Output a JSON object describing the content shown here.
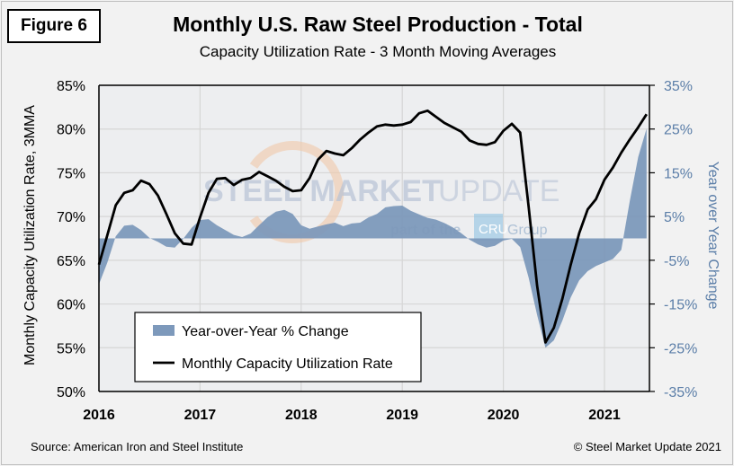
{
  "figure_label": "Figure 6",
  "source": "Source: American Iron and Steel Institute",
  "copyright": "© Steel Market Update 2021",
  "watermark": {
    "main_bold": "STEEL MARKET",
    "main_light": "UPDATE",
    "sub_pre": "part of the",
    "sub_badge": "CRU",
    "sub_post": "Group"
  },
  "colors": {
    "area": "#7d99bb",
    "line": "#000000",
    "right_axis": "#5b7ea8",
    "plot_bg": "#edeef0"
  },
  "chart_data": {
    "type": "line+area",
    "title": "Monthly U.S. Raw Steel Production - Total",
    "subtitle": "Capacity Utilization Rate - 3 Month Moving Averages",
    "ylabel": "Monthly Capacity Utilization Rate, 3MMA",
    "y2label": "Year over Year Change",
    "ylim": [
      50,
      85
    ],
    "y2lim": [
      -35,
      35
    ],
    "yticks": [
      "50%",
      "55%",
      "60%",
      "65%",
      "70%",
      "75%",
      "80%",
      "85%"
    ],
    "y2ticks": [
      "-35%",
      "-25%",
      "-15%",
      "-5%",
      "5%",
      "15%",
      "25%",
      "35%"
    ],
    "xticks": [
      "2016",
      "2017",
      "2018",
      "2019",
      "2020",
      "2021"
    ],
    "x_start": "2016-01",
    "x_end": "2021-06",
    "grid": true,
    "legend_placement": "bottom-left",
    "series": [
      {
        "name": "Year-over-Year % Change",
        "type": "area",
        "axis": "right",
        "values": [
          -10.5,
          -5.5,
          0.5,
          2.9,
          3.1,
          1.9,
          0.1,
          -0.8,
          -1.9,
          -2.1,
          -0.1,
          2.4,
          4.2,
          4.4,
          3.0,
          1.9,
          0.8,
          0.3,
          1.1,
          3.0,
          4.8,
          6.1,
          6.5,
          5.6,
          3.0,
          2.2,
          2.7,
          3.2,
          3.6,
          2.8,
          3.4,
          3.6,
          4.8,
          5.6,
          7.1,
          7.4,
          7.5,
          6.3,
          5.5,
          4.7,
          4.3,
          3.5,
          2.5,
          1.2,
          -0.3,
          -1.4,
          -2.1,
          -1.7,
          -0.5,
          -0.1,
          -2.0,
          -9.0,
          -17.5,
          -25.0,
          -23.3,
          -18.8,
          -13.5,
          -9.6,
          -7.5,
          -6.3,
          -5.5,
          -4.7,
          -2.6,
          8.5,
          18.6,
          25.1
        ]
      },
      {
        "name": "Monthly Capacity Utilization Rate",
        "type": "line",
        "axis": "left",
        "values": [
          64.5,
          67.9,
          71.3,
          72.7,
          73.0,
          74.1,
          73.7,
          72.4,
          70.3,
          68.1,
          66.9,
          66.8,
          69.9,
          72.7,
          74.3,
          74.4,
          73.6,
          74.2,
          74.4,
          75.1,
          74.6,
          74.1,
          73.4,
          72.9,
          73.0,
          74.4,
          76.5,
          77.5,
          77.2,
          77.0,
          77.8,
          78.8,
          79.6,
          80.3,
          80.5,
          80.4,
          80.5,
          80.8,
          81.8,
          82.1,
          81.4,
          80.7,
          80.2,
          79.7,
          78.7,
          78.3,
          78.2,
          78.5,
          79.8,
          80.6,
          79.6,
          71.1,
          62.1,
          55.6,
          57.3,
          60.6,
          64.5,
          68.1,
          70.8,
          72.0,
          74.2,
          75.6,
          77.3,
          78.8,
          80.2,
          81.7
        ]
      }
    ]
  }
}
